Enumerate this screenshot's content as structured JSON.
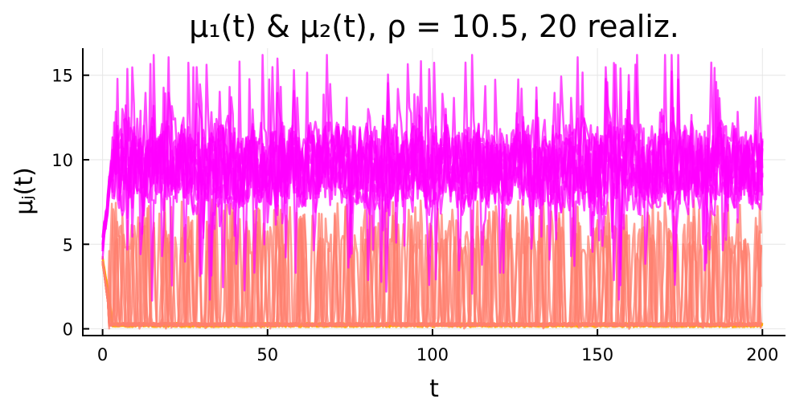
{
  "chart_data": {
    "type": "line",
    "title": "μ₁(t) & μ₂(t), ρ = 10.5, 20 realiz.",
    "xlabel": "t",
    "ylabel": "μⱼ(t)",
    "xlim": [
      -6,
      207
    ],
    "ylim": [
      -0.4,
      16.6
    ],
    "xticks": [
      0,
      50,
      100,
      150,
      200
    ],
    "yticks": [
      0,
      5,
      10,
      15
    ],
    "grid": true,
    "legend": "none",
    "realizations": 20,
    "series": [
      {
        "group": "mu1",
        "color": "#ffa500",
        "t": [
          0,
          5,
          10,
          15,
          20,
          25,
          30,
          35,
          40,
          45,
          50,
          55,
          60,
          65,
          70,
          75,
          80,
          85,
          90,
          95,
          100,
          105,
          110,
          115,
          120,
          125,
          130,
          135,
          140,
          145,
          150,
          155,
          160,
          165,
          170,
          175,
          180,
          185,
          190,
          195,
          200
        ],
        "values": [
          3.8,
          0.2,
          0.1,
          0.1,
          0.2,
          0.1,
          0.1,
          0.2,
          0.1,
          0.1,
          0.1,
          0.2,
          0.1,
          0.1,
          0.1,
          0.2,
          0.1,
          0.1,
          0.1,
          0.2,
          0.1,
          0.2,
          0.1,
          0.1,
          0.1,
          0.2,
          0.1,
          0.1,
          0.1,
          0.2,
          0.1,
          0.1,
          0.1,
          0.1,
          0.2,
          0.1,
          0.1,
          0.2,
          0.1,
          0.1,
          0.2
        ]
      },
      {
        "group": "mu1-spiking",
        "color": "#ff7f6e",
        "t": [
          0,
          5,
          10,
          15,
          20,
          25,
          30,
          35,
          40,
          45,
          50,
          55,
          60,
          65,
          70,
          75,
          80,
          85,
          90,
          95,
          100,
          105,
          110,
          115,
          120,
          125,
          130,
          135,
          140,
          145,
          150,
          155,
          160,
          165,
          170,
          175,
          180,
          185,
          190,
          195,
          200
        ],
        "values": [
          4.0,
          0.5,
          6.5,
          0.3,
          7.2,
          0.4,
          6.8,
          0.3,
          7.5,
          0.4,
          7.0,
          0.3,
          6.9,
          0.4,
          7.3,
          0.3,
          6.7,
          0.4,
          7.1,
          0.3,
          7.4,
          0.4,
          6.8,
          0.3,
          7.0,
          0.4,
          7.2,
          0.3,
          6.6,
          0.4,
          7.3,
          0.3,
          6.9,
          0.4,
          7.1,
          0.3,
          7.0,
          0.4,
          6.8,
          0.3,
          0.5
        ]
      },
      {
        "group": "mu2",
        "color": "#ff00ff",
        "t": [
          0,
          5,
          10,
          15,
          20,
          25,
          30,
          35,
          40,
          45,
          50,
          55,
          60,
          65,
          70,
          75,
          80,
          85,
          90,
          95,
          100,
          105,
          110,
          115,
          120,
          125,
          130,
          135,
          140,
          145,
          150,
          155,
          160,
          165,
          170,
          175,
          180,
          185,
          190,
          195,
          200
        ],
        "values": [
          3.9,
          10.2,
          9.5,
          10.8,
          9.8,
          10.5,
          9.6,
          10.3,
          9.9,
          10.6,
          9.7,
          10.4,
          9.8,
          10.2,
          9.9,
          10.5,
          9.6,
          10.3,
          9.8,
          10.7,
          9.9,
          10.2,
          9.7,
          10.4,
          9.8,
          10.5,
          9.9,
          10.3,
          9.7,
          10.4,
          9.8,
          10.2,
          9.9,
          10.5,
          9.6,
          10.3,
          9.8,
          10.4,
          9.7,
          10.1,
          9.8
        ]
      }
    ]
  }
}
